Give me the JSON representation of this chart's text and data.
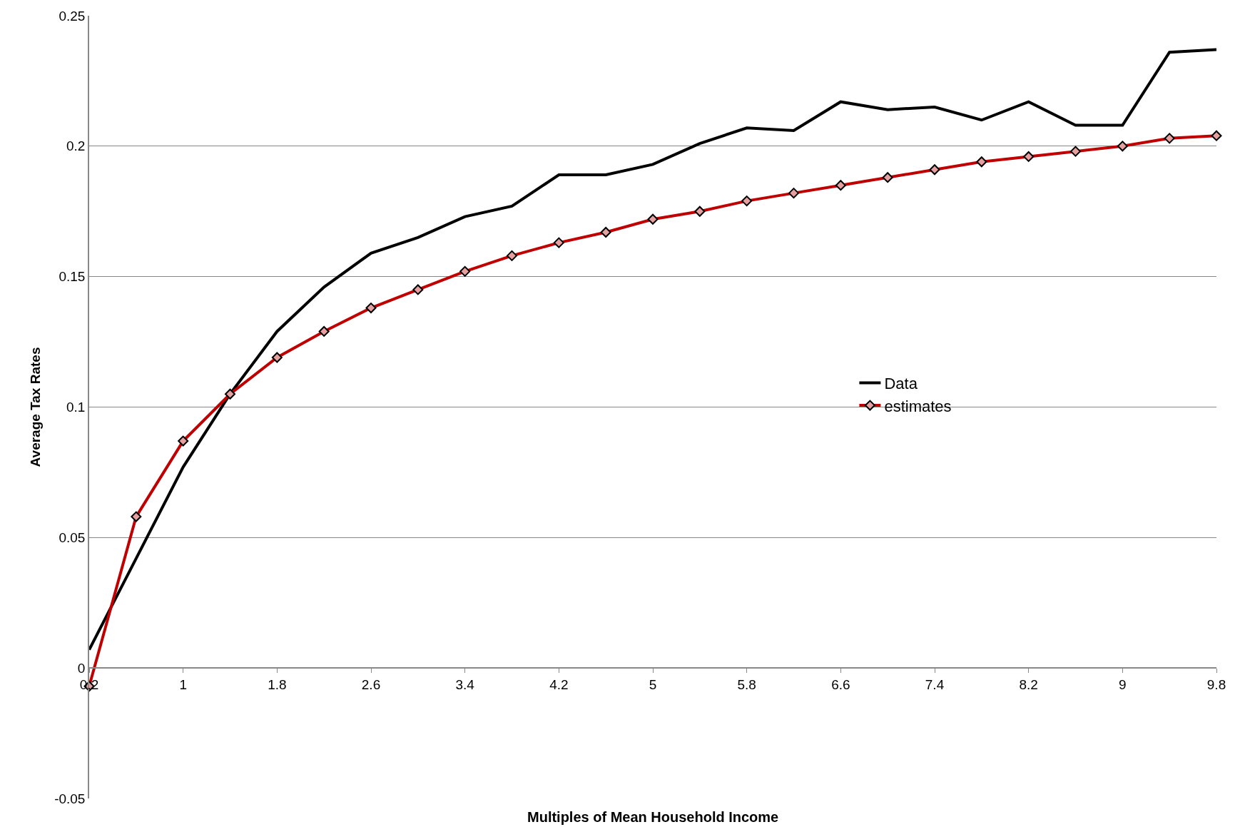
{
  "chart_data": {
    "type": "line",
    "xlabel": "Multiples of Mean Household Income",
    "ylabel": "Average Tax Rates",
    "categories": [
      "0.2",
      null,
      "1",
      null,
      "1.8",
      null,
      "2.6",
      null,
      "3.4",
      null,
      "4.2",
      null,
      "5",
      null,
      "5.8",
      null,
      "6.6",
      null,
      "7.4",
      null,
      "8.2",
      null,
      "9",
      null,
      "9.8"
    ],
    "series": [
      {
        "name": "Data",
        "color": "#000000",
        "marker": "none",
        "values": [
          0.007,
          0.042,
          0.077,
          0.105,
          0.129,
          0.146,
          0.159,
          0.165,
          0.173,
          0.177,
          0.189,
          0.189,
          0.193,
          0.201,
          0.207,
          0.206,
          0.217,
          0.214,
          0.215,
          0.21,
          0.217,
          0.208,
          0.208,
          0.236,
          0.237
        ]
      },
      {
        "name": "estimates",
        "color": "#c00000",
        "marker": "diamond",
        "values": [
          -0.007,
          0.058,
          0.087,
          0.105,
          0.119,
          0.129,
          0.138,
          0.145,
          0.152,
          0.158,
          0.163,
          0.167,
          0.172,
          0.175,
          0.179,
          0.182,
          0.185,
          0.188,
          0.191,
          0.194,
          0.196,
          0.198,
          0.2,
          0.203,
          0.204
        ]
      }
    ],
    "ylim": [
      -0.05,
      0.25
    ],
    "yticks": [
      -0.05,
      0,
      0.05,
      0.1,
      0.15,
      0.2,
      0.25
    ],
    "grid": "y",
    "legend": "right",
    "line_style": "solid"
  }
}
